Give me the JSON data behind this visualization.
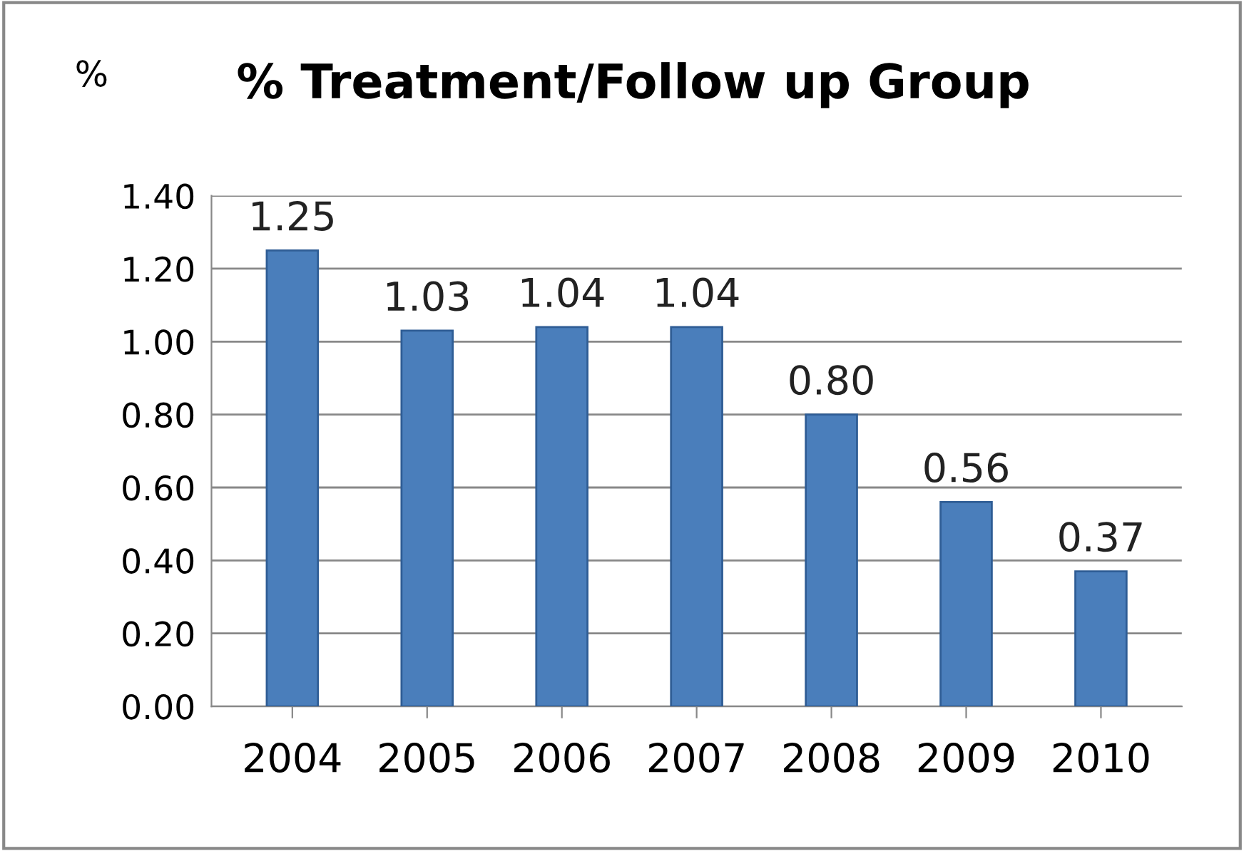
{
  "chart_data": {
    "type": "bar",
    "title": "% Treatment/Follow up Group",
    "ylabel": "%",
    "categories": [
      "2004",
      "2005",
      "2006",
      "2007",
      "2008",
      "2009",
      "2010"
    ],
    "values": [
      1.25,
      1.03,
      1.04,
      1.04,
      0.8,
      0.56,
      0.37
    ],
    "value_labels": [
      "1.25",
      "1.03",
      "1.04",
      "1.04",
      "0.80",
      "0.56",
      "0.37"
    ],
    "color": "#4a7ebb",
    "ylim": [
      0,
      1.4
    ],
    "yticks": [
      {
        "value": 0,
        "label": "0.00"
      },
      {
        "value": 0.2,
        "label": "0.20"
      },
      {
        "value": 0.4,
        "label": "0.40"
      },
      {
        "value": 0.6,
        "label": "0.60"
      },
      {
        "value": 0.8,
        "label": "0.80"
      },
      {
        "value": 1.0,
        "label": "1.00"
      },
      {
        "value": 1.2,
        "label": "1.20"
      },
      {
        "value": 1.4,
        "label": "1.40"
      }
    ],
    "grid": "y",
    "legend": false
  }
}
